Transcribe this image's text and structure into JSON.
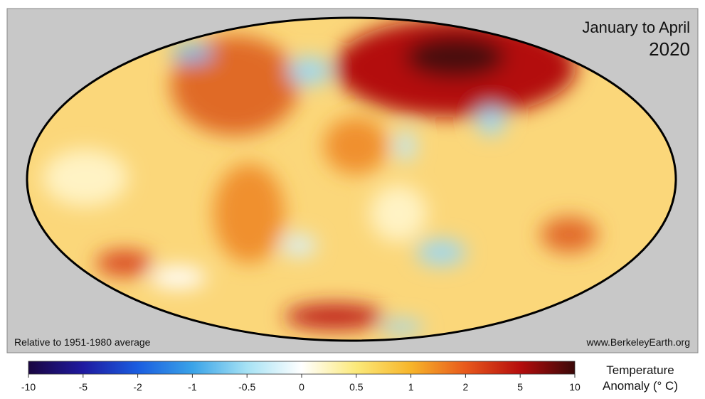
{
  "header": {
    "title": "January to April",
    "year": "2020"
  },
  "footer": {
    "note": "Relative to 1951-1980 average",
    "source": "www.BerkeleyEarth.org"
  },
  "colorbar": {
    "title": [
      "Temperature",
      "Anomaly (° C)"
    ],
    "ticks": [
      -10,
      -5,
      -2,
      -1,
      -0.5,
      0,
      0.5,
      1,
      2,
      5,
      10
    ]
  }
}
